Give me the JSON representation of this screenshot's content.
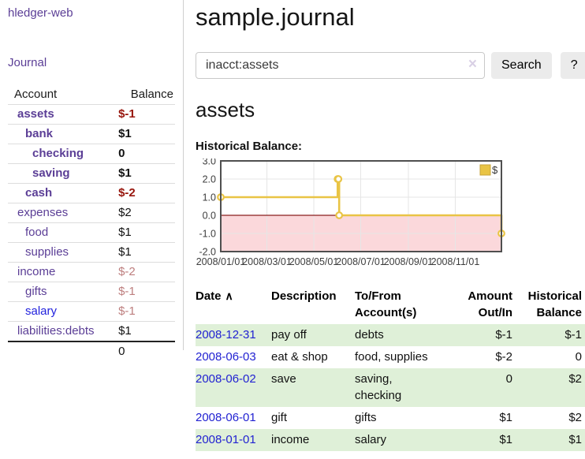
{
  "app": {
    "title": "hledger-web"
  },
  "sidebar": {
    "journal_label": "Journal",
    "accounts": {
      "header_account": "Account",
      "header_balance": "Balance",
      "rows": [
        {
          "name": "assets",
          "balance": "$-1"
        },
        {
          "name": "bank",
          "balance": "$1"
        },
        {
          "name": "checking",
          "balance": "0"
        },
        {
          "name": "saving",
          "balance": "$1"
        },
        {
          "name": "cash",
          "balance": "$-2"
        },
        {
          "name": "expenses",
          "balance": "$2"
        },
        {
          "name": "food",
          "balance": "$1"
        },
        {
          "name": "supplies",
          "balance": "$1"
        },
        {
          "name": "income",
          "balance": "$-2"
        },
        {
          "name": "gifts",
          "balance": "$-1"
        },
        {
          "name": "salary",
          "balance": "$-1"
        },
        {
          "name": "liabilities:debts",
          "balance": "$1"
        }
      ],
      "total": "0"
    }
  },
  "main": {
    "title": "sample.journal",
    "search": {
      "value": "inacct:assets",
      "clear_icon": "×",
      "button_label": "Search",
      "help_label": "?"
    },
    "account_heading": "assets"
  },
  "chart_data": {
    "type": "line",
    "title": "Historical Balance:",
    "legend_label": "$",
    "legend_position": "top-right",
    "grid": true,
    "x_range": {
      "start": "2008-01-01",
      "end": "2008-12-31"
    },
    "ylim": [
      -2,
      3
    ],
    "yticks": [
      3,
      2,
      1,
      0,
      -1,
      -2
    ],
    "xticks": [
      {
        "date": "2008-01-01",
        "label": "2008/01/01"
      },
      {
        "date": "2008-03-01",
        "label": "2008/03/01"
      },
      {
        "date": "2008-05-01",
        "label": "2008/05/01"
      },
      {
        "date": "2008-07-01",
        "label": "2008/07/01"
      },
      {
        "date": "2008-09-01",
        "label": "2008/09/01"
      },
      {
        "date": "2008-11-01",
        "label": "2008/11/01"
      }
    ],
    "series": [
      {
        "name": "$",
        "color": "#e9c445",
        "step": true,
        "points": [
          {
            "date": "2008-01-01",
            "value": 1
          },
          {
            "date": "2008-06-01",
            "value": 2
          },
          {
            "date": "2008-06-02",
            "value": 2
          },
          {
            "date": "2008-06-03",
            "value": 0
          },
          {
            "date": "2008-12-31",
            "value": -1
          }
        ]
      }
    ],
    "colors": {
      "negative_region": "#fbd8db",
      "zero_line": "#8b1e1e",
      "grid": "#e6e6e6",
      "border": "#4f4f4f",
      "axis_text": "#3d3d3d",
      "legend_swatch_border": "#c7a33a"
    }
  },
  "register": {
    "headers": {
      "date": "Date",
      "sort_icon": "∧",
      "description": "Description",
      "tofrom": "To/From Account(s)",
      "amount": "Amount Out/In",
      "balance": "Historical Balance"
    },
    "rows": [
      {
        "date": "2008-12-31",
        "description": "pay off",
        "accounts": "debts",
        "amount": "$-1",
        "balance": "$-1"
      },
      {
        "date": "2008-06-03",
        "description": "eat & shop",
        "accounts": "food, supplies",
        "amount": "$-2",
        "balance": "0"
      },
      {
        "date": "2008-06-02",
        "description": "save",
        "accounts": "saving,\nchecking",
        "amount": "0",
        "balance": "$2"
      },
      {
        "date": "2008-06-01",
        "description": "gift",
        "accounts": "gifts",
        "amount": "$1",
        "balance": "$2"
      },
      {
        "date": "2008-01-01",
        "description": "income",
        "accounts": "salary",
        "amount": "$1",
        "balance": "$1"
      }
    ]
  }
}
